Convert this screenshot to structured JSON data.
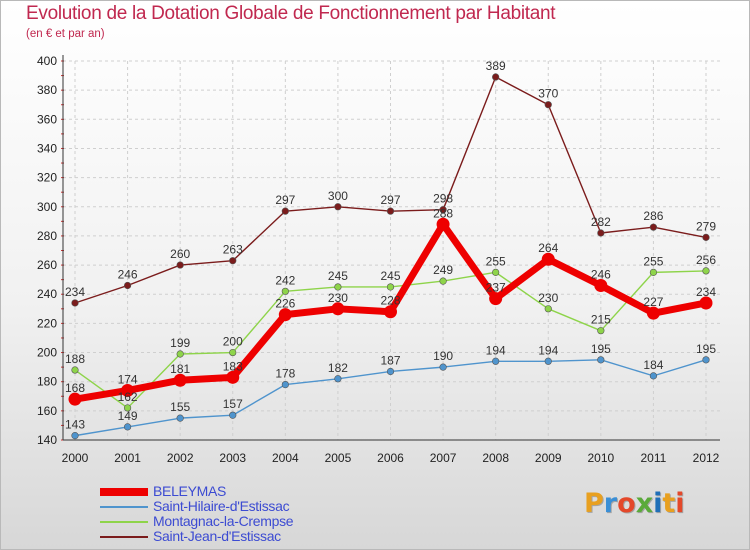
{
  "header": {
    "title": "Evolution de la Dotation Globale de Fonctionnement par Habitant",
    "subtitle": "(en € et par an)"
  },
  "logo": {
    "text": "Proxiti",
    "letters": [
      "P",
      "r",
      "o",
      "x",
      "i",
      "t",
      "i"
    ],
    "colors": [
      "#e8a020",
      "#3a8fd6",
      "#e4482a",
      "#5aaa3a",
      "#1f6fb8",
      "#e8a020",
      "#e4482a"
    ]
  },
  "chart_data": {
    "type": "line",
    "title": "Evolution de la Dotation Globale de Fonctionnement par Habitant",
    "subtitle": "(en € et par an)",
    "x": [
      "2000",
      "2001",
      "2002",
      "2003",
      "2004",
      "2005",
      "2006",
      "2007",
      "2008",
      "2009",
      "2010",
      "2011",
      "2012"
    ],
    "ylim": [
      140,
      400
    ],
    "yticks": [
      140,
      160,
      180,
      200,
      220,
      240,
      260,
      280,
      300,
      320,
      340,
      360,
      380,
      400
    ],
    "grid": true,
    "legend_position": "bottom-left",
    "series": [
      {
        "name": "BELEYMAS",
        "color": "#ee0000",
        "emphasis": true,
        "values": [
          168,
          174,
          181,
          183,
          226,
          230,
          228,
          288,
          237,
          264,
          246,
          227,
          234
        ]
      },
      {
        "name": "Saint-Hilaire-d'Estissac",
        "color": "#4f94cd",
        "emphasis": false,
        "values": [
          143,
          149,
          155,
          157,
          178,
          182,
          187,
          190,
          194,
          194,
          195,
          184,
          195
        ]
      },
      {
        "name": "Montagnac-la-Crempse",
        "color": "#8ed44a",
        "emphasis": false,
        "values": [
          188,
          162,
          199,
          200,
          242,
          245,
          245,
          249,
          255,
          230,
          215,
          255,
          256
        ]
      },
      {
        "name": "Saint-Jean-d'Estissac",
        "color": "#7b1c1c",
        "emphasis": false,
        "values": [
          234,
          246,
          260,
          263,
          297,
          300,
          297,
          298,
          389,
          370,
          282,
          286,
          279
        ]
      }
    ]
  }
}
